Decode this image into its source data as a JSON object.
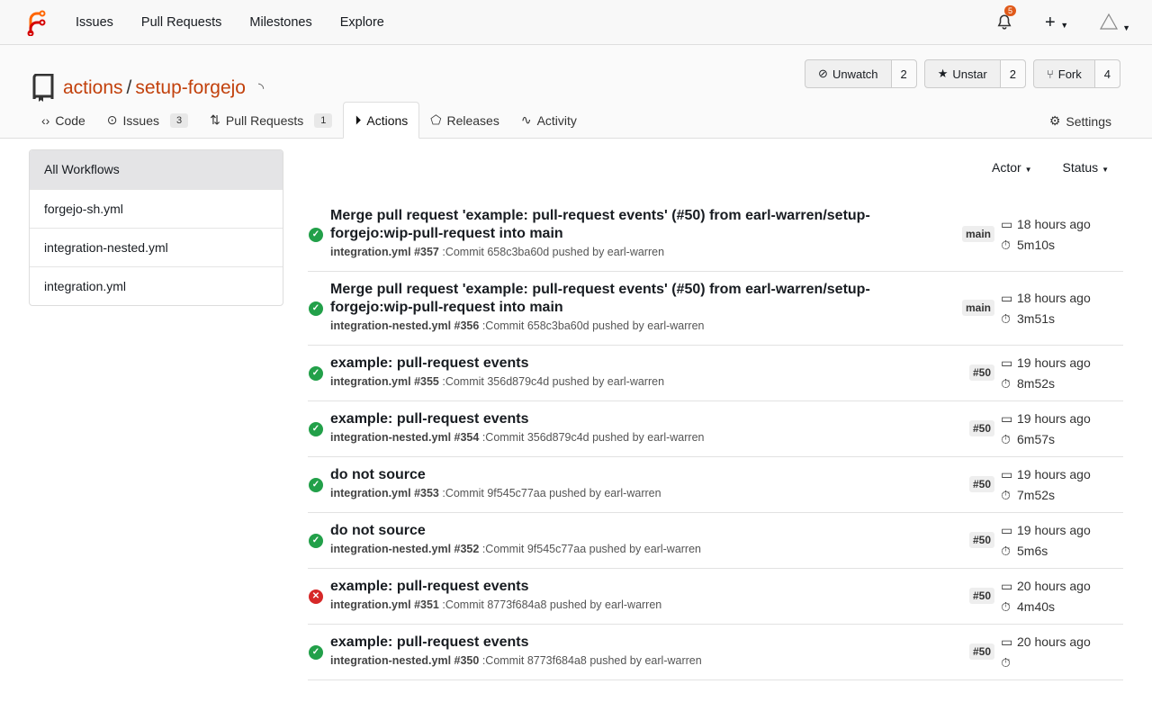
{
  "nav": {
    "items": [
      "Issues",
      "Pull Requests",
      "Milestones",
      "Explore"
    ],
    "notifications": "5",
    "create": "+"
  },
  "repo": {
    "owner": "actions",
    "name": "setup-forgejo"
  },
  "buttons": {
    "watch": {
      "label": "Unwatch",
      "count": "2"
    },
    "star": {
      "label": "Unstar",
      "count": "2"
    },
    "fork": {
      "label": "Fork",
      "count": "4"
    }
  },
  "tabs": [
    {
      "label": "Code",
      "icon": "code-icon"
    },
    {
      "label": "Issues",
      "count": "3",
      "icon": "issue-icon"
    },
    {
      "label": "Pull Requests",
      "count": "1",
      "icon": "pr-icon"
    },
    {
      "label": "Actions",
      "icon": "play-icon",
      "active": true
    },
    {
      "label": "Releases",
      "icon": "tag-icon"
    },
    {
      "label": "Activity",
      "icon": "pulse-icon"
    }
  ],
  "settings": "Settings",
  "workflows": [
    "All Workflows",
    "forgejo-sh.yml",
    "integration-nested.yml",
    "integration.yml"
  ],
  "filters": {
    "actor": "Actor",
    "status": "Status"
  },
  "runs": [
    {
      "status": "success",
      "title": "Merge pull request 'example: pull-request events' (#50) from earl-warren/setup-forgejo:wip-pull-request into main",
      "workflow": "integration.yml #357",
      "detail": ":Commit 658c3ba60d pushed by earl-warren",
      "ref": "main",
      "time": "18 hours ago",
      "duration": "5m10s"
    },
    {
      "status": "success",
      "title": "Merge pull request 'example: pull-request events' (#50) from earl-warren/setup-forgejo:wip-pull-request into main",
      "workflow": "integration-nested.yml #356",
      "detail": ":Commit 658c3ba60d pushed by earl-warren",
      "ref": "main",
      "time": "18 hours ago",
      "duration": "3m51s"
    },
    {
      "status": "success",
      "title": "example: pull-request events",
      "workflow": "integration.yml #355",
      "detail": ":Commit 356d879c4d pushed by earl-warren",
      "ref": "#50",
      "time": "19 hours ago",
      "duration": "8m52s"
    },
    {
      "status": "success",
      "title": "example: pull-request events",
      "workflow": "integration-nested.yml #354",
      "detail": ":Commit 356d879c4d pushed by earl-warren",
      "ref": "#50",
      "time": "19 hours ago",
      "duration": "6m57s"
    },
    {
      "status": "success",
      "title": "do not source",
      "workflow": "integration.yml #353",
      "detail": ":Commit 9f545c77aa pushed by earl-warren",
      "ref": "#50",
      "time": "19 hours ago",
      "duration": "7m52s"
    },
    {
      "status": "success",
      "title": "do not source",
      "workflow": "integration-nested.yml #352",
      "detail": ":Commit 9f545c77aa pushed by earl-warren",
      "ref": "#50",
      "time": "19 hours ago",
      "duration": "5m6s"
    },
    {
      "status": "failure",
      "title": "example: pull-request events",
      "workflow": "integration.yml #351",
      "detail": ":Commit 8773f684a8 pushed by earl-warren",
      "ref": "#50",
      "time": "20 hours ago",
      "duration": "4m40s"
    },
    {
      "status": "success",
      "title": "example: pull-request events",
      "workflow": "integration-nested.yml #350",
      "detail": ":Commit 8773f684a8 pushed by earl-warren",
      "ref": "#50",
      "time": "20 hours ago",
      "duration": ""
    }
  ]
}
